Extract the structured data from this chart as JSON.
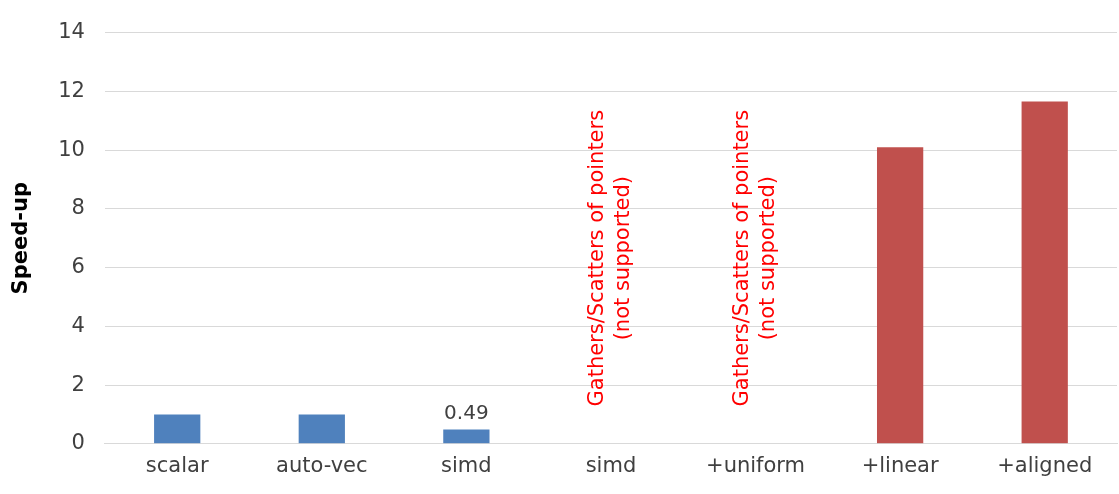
{
  "chart_data": {
    "type": "bar",
    "ylabel": "Speed-up",
    "categories": [
      "scalar",
      "auto-vec",
      "simd",
      "simd",
      "+uniform",
      "+linear",
      "+aligned"
    ],
    "values": [
      1,
      1,
      0.49,
      null,
      null,
      10.1,
      11.65
    ],
    "colors": [
      "#4f81bd",
      "#4f81bd",
      "#4f81bd",
      "#4f81bd",
      "#c0504d",
      "#c0504d",
      "#c0504d"
    ],
    "value_labels": [
      null,
      null,
      "0.49",
      null,
      null,
      null,
      null
    ],
    "ylim": [
      0,
      14
    ],
    "yticks": [
      0,
      2,
      4,
      6,
      8,
      10,
      12,
      14
    ],
    "grid": "y",
    "legend": false,
    "annotations": [
      "Gathers/Scatters of pointers\n(not supported)",
      "Gathers/Scatters of pointers\n(not supported)"
    ]
  }
}
